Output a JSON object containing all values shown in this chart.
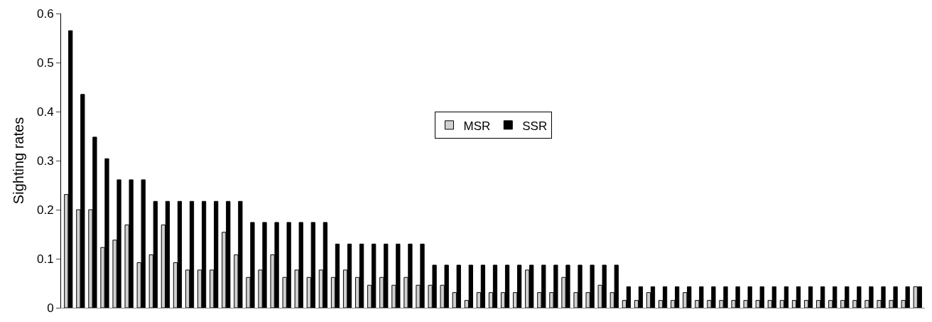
{
  "chart_data": {
    "type": "bar",
    "ylabel": "Sighting rates",
    "categories": [
      null,
      null,
      null,
      null,
      null,
      null,
      null,
      null,
      null,
      null,
      null,
      null,
      null,
      null,
      null,
      null,
      null,
      null,
      null,
      null,
      null,
      null,
      null,
      null,
      null,
      null,
      null,
      null,
      null,
      null,
      null,
      null,
      null,
      null,
      null,
      null,
      null,
      null,
      null,
      null,
      null,
      null,
      null,
      null,
      null,
      null,
      null,
      null,
      null,
      null,
      null,
      null,
      null,
      null,
      null,
      null,
      null,
      null,
      null,
      null,
      null,
      null,
      null,
      null,
      null,
      null,
      null,
      null,
      null,
      null,
      null
    ],
    "series": [
      {
        "name": "MSR",
        "color": "#d0d0d0",
        "values": [
          0.231,
          0.2,
          0.2,
          0.123,
          0.138,
          0.169,
          0.092,
          0.108,
          0.169,
          0.092,
          0.077,
          0.077,
          0.077,
          0.154,
          0.108,
          0.062,
          0.077,
          0.108,
          0.062,
          0.077,
          0.062,
          0.077,
          0.062,
          0.077,
          0.062,
          0.046,
          0.062,
          0.046,
          0.062,
          0.046,
          0.046,
          0.046,
          0.031,
          0.015,
          0.031,
          0.031,
          0.031,
          0.031,
          0.077,
          0.031,
          0.031,
          0.062,
          0.031,
          0.031,
          0.046,
          0.031,
          0.015,
          0.015,
          0.031,
          0.015,
          0.015,
          0.031,
          0.015,
          0.015,
          0.015,
          0.015,
          0.015,
          0.015,
          0.015,
          0.015,
          0.015,
          0.015,
          0.015,
          0.015,
          0.015,
          0.015,
          0.015,
          0.015,
          0.015,
          0.015,
          0.043
        ]
      },
      {
        "name": "SSR",
        "color": "#000000",
        "values": [
          0.565,
          0.435,
          0.348,
          0.304,
          0.261,
          0.261,
          0.261,
          0.217,
          0.217,
          0.217,
          0.217,
          0.217,
          0.217,
          0.217,
          0.217,
          0.174,
          0.174,
          0.174,
          0.174,
          0.174,
          0.174,
          0.174,
          0.13,
          0.13,
          0.13,
          0.13,
          0.13,
          0.13,
          0.13,
          0.13,
          0.087,
          0.087,
          0.087,
          0.087,
          0.087,
          0.087,
          0.087,
          0.087,
          0.087,
          0.087,
          0.087,
          0.087,
          0.087,
          0.087,
          0.087,
          0.087,
          0.043,
          0.043,
          0.043,
          0.043,
          0.043,
          0.043,
          0.043,
          0.043,
          0.043,
          0.043,
          0.043,
          0.043,
          0.043,
          0.043,
          0.043,
          0.043,
          0.043,
          0.043,
          0.043,
          0.043,
          0.043,
          0.043,
          0.043,
          0.043,
          0.043
        ]
      }
    ],
    "ylim": [
      0,
      0.6
    ],
    "yticks": [
      0,
      0.1,
      0.2,
      0.3,
      0.4,
      0.5,
      0.6
    ],
    "grid": false,
    "legend": "top",
    "tick_labels": "y"
  }
}
